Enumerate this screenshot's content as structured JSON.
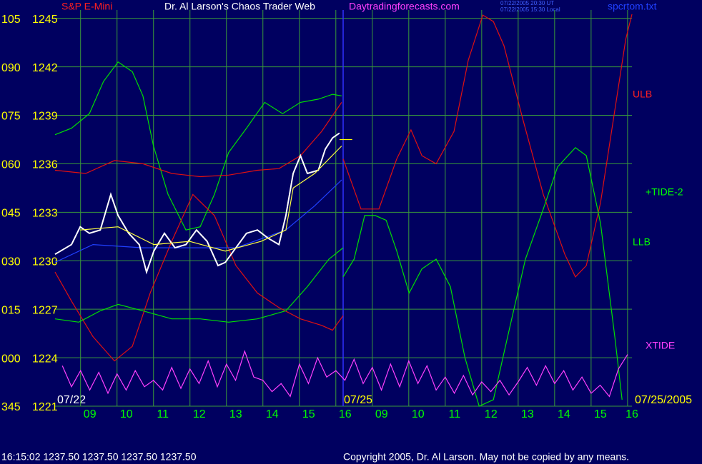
{
  "chart_data": {
    "type": "line",
    "title": "Dr. Al Larson's Chaos Trader Web",
    "instrument": "S&P E-Mini",
    "website": "Daytradingforecasts.com",
    "timestamps": [
      "07/22/2005 20:30 UT",
      "07/22/2005 15:30 Local"
    ],
    "file": "spcrtom.txt",
    "quote": "16:15:02  1237.50 1237.50 1237.50 1237.50",
    "copyright": "Copyright 2005, Dr. Al Larson. May not be copied by any means.",
    "dates": [
      "07/22",
      "07/25",
      "07/25/2005"
    ],
    "background": "#000060",
    "grid": true,
    "grid_color": "#3a9a3a",
    "xlim": [
      8.3,
      24.12
    ],
    "xticks": [
      {
        "value": 9,
        "label": "09"
      },
      10,
      11,
      12,
      13,
      14,
      15,
      16,
      {
        "value": 17,
        "label": "09"
      },
      {
        "value": 18,
        "label": "10"
      },
      {
        "value": 19,
        "label": "11"
      },
      {
        "value": 20,
        "label": "12"
      },
      {
        "value": 21,
        "label": "13"
      },
      {
        "value": 22,
        "label": "14"
      },
      {
        "value": 23,
        "label": "15"
      },
      {
        "value": 24,
        "label": "16"
      }
    ],
    "ylim": [
      1221,
      1245.25
    ],
    "yticks": [
      1245,
      1242,
      1239,
      1236,
      1233,
      1230,
      1227,
      1224,
      1221
    ],
    "y2lim": [
      -15,
      106.25
    ],
    "y2ticks": [
      105,
      {
        "value": 90,
        "label": "090"
      },
      {
        "value": 75,
        "label": "075"
      },
      {
        "value": 60,
        "label": "060"
      },
      {
        "value": 45,
        "label": "045"
      },
      {
        "value": 30,
        "label": "030"
      },
      {
        "value": 15,
        "label": "015"
      },
      {
        "value": 0,
        "label": "000"
      },
      {
        "value": -15,
        "label": "345"
      }
    ],
    "annotations": [
      {
        "text": "ULB",
        "color": "#ff2020"
      },
      {
        "text": "+TIDE-2",
        "color": "#00ff00"
      },
      {
        "text": "LLB",
        "color": "#00ff00"
      },
      {
        "text": "XTIDE",
        "color": "#ff40ff"
      }
    ],
    "series": [
      {
        "color": "#00e000",
        "x": [
          8.3,
          8.75,
          9.24,
          9.63,
          10.03,
          10.42,
          10.71,
          11.0,
          11.4,
          11.89,
          12.28,
          12.67,
          13.06,
          13.55,
          14.05,
          14.54,
          15.03,
          15.52,
          15.91,
          16.16
        ],
        "values": [
          1237.8,
          1238.2,
          1239.1,
          1241.1,
          1242.3,
          1241.7,
          1240.2,
          1237.1,
          1234.1,
          1231.9,
          1232.1,
          1234.1,
          1236.7,
          1238.2,
          1239.8,
          1239.1,
          1239.8,
          1240,
          1240.3,
          1240.2
        ]
      },
      {
        "color": "#e01010",
        "x": [
          8.3,
          9.14,
          9.93,
          10.71,
          11.5,
          12.28,
          13.06,
          13.85,
          14.44,
          15.03,
          15.61,
          16.16
        ],
        "values": [
          1235.6,
          1235.4,
          1236.2,
          1236,
          1235.4,
          1235.2,
          1235.3,
          1235.6,
          1235.7,
          1236.5,
          1238,
          1239.8
        ]
      },
      {
        "color": "#e01010",
        "x": [
          16.2,
          16.69,
          17.18,
          17.67,
          18.06,
          18.36,
          18.75,
          19.24,
          19.63,
          20.03,
          20.32,
          20.61,
          21.11,
          21.69,
          22.28,
          22.57,
          22.87,
          23.26,
          23.65,
          23.95,
          24.12
        ],
        "values": [
          1236.3,
          1233.2,
          1233.2,
          1236.3,
          1238.1,
          1236.5,
          1236,
          1238,
          1242.4,
          1245.2,
          1244.8,
          1243.3,
          1238.9,
          1234.1,
          1230.4,
          1229,
          1229.7,
          1233.6,
          1239.3,
          1243.7,
          1245.25
        ]
      },
      {
        "color": "#e01010",
        "x": [
          8.3,
          8.75,
          9.34,
          9.93,
          10.42,
          10.91,
          11.5,
          12.08,
          12.67,
          13.26,
          13.85,
          14.44,
          15.03,
          15.61,
          15.91,
          16.2
        ],
        "values": [
          1229.3,
          1227.5,
          1225.3,
          1223.8,
          1224.7,
          1228,
          1231.2,
          1234.1,
          1232.8,
          1229.7,
          1228,
          1227.1,
          1226.4,
          1226,
          1225.7,
          1226.6
        ]
      },
      {
        "color": "#00e000",
        "x": [
          8.3,
          8.95,
          9.54,
          10.03,
          10.71,
          11.5,
          12.28,
          13.06,
          13.85,
          14.63,
          15.22,
          15.81,
          16.2
        ],
        "values": [
          1226.4,
          1226.2,
          1226.9,
          1227.3,
          1226.9,
          1226.4,
          1226.4,
          1226.2,
          1226.4,
          1226.9,
          1228.4,
          1230.1,
          1230.8
        ]
      },
      {
        "color": "#00e000",
        "x": [
          16.2,
          16.5,
          16.79,
          17.08,
          17.38,
          17.67,
          18.01,
          18.36,
          18.75,
          19.14,
          19.54,
          19.93,
          20.32,
          20.71,
          21.2,
          21.69,
          22.08,
          22.57,
          22.87,
          23.26,
          23.65,
          23.85
        ],
        "values": [
          1229,
          1230.1,
          1232.8,
          1232.8,
          1232.5,
          1230.6,
          1228,
          1229.5,
          1230.1,
          1228.4,
          1224,
          1221,
          1221.4,
          1225.3,
          1230.1,
          1233.2,
          1235.8,
          1237,
          1236.5,
          1232.3,
          1225.3,
          1221.4
        ]
      },
      {
        "color": "#ff40ff",
        "x": [
          8.5,
          8.75,
          9,
          9.25,
          9.5,
          9.75,
          10,
          10.25,
          10.5,
          10.75,
          11,
          11.25,
          11.5,
          11.75,
          12,
          12.25,
          12.5,
          12.75,
          13,
          13.25,
          13.5,
          13.75,
          14,
          14.25,
          14.5,
          14.75,
          15,
          15.25,
          15.5,
          15.75,
          16,
          16.25,
          16.5,
          16.75,
          17,
          17.25,
          17.5,
          17.75,
          18,
          18.25,
          18.5,
          18.75,
          19,
          19.25,
          19.5,
          19.75,
          20,
          20.25,
          20.5,
          20.75,
          21,
          21.25,
          21.5,
          21.75,
          22,
          22.25,
          22.5,
          22.75,
          23,
          23.25,
          23.5,
          23.75,
          24
        ],
        "values": [
          1223.5,
          1222.2,
          1223.2,
          1222.0,
          1223.1,
          1221.8,
          1223.0,
          1222.0,
          1223.2,
          1222.2,
          1222.6,
          1222.0,
          1223.4,
          1222.1,
          1223.3,
          1222.4,
          1223.8,
          1222.2,
          1223.6,
          1222.6,
          1224.4,
          1222.8,
          1222.6,
          1221.9,
          1222.4,
          1221.6,
          1223.6,
          1222.4,
          1224.0,
          1222.8,
          1223.2,
          1222.6,
          1223.9,
          1222.4,
          1223.4,
          1222.0,
          1223.6,
          1222.2,
          1223.8,
          1222.4,
          1223.5,
          1222.0,
          1222.8,
          1221.8,
          1222.9,
          1221.7,
          1222.5,
          1221.9,
          1222.6,
          1221.7,
          1222.5,
          1223.4,
          1222.3,
          1223.5,
          1222.4,
          1223.2,
          1222.0,
          1222.8,
          1221.8,
          1222.3,
          1221.6,
          1223.3,
          1224.2
        ]
      },
      {
        "color": "#2040ff",
        "x": [
          8.3,
          9.34,
          10.71,
          12.28,
          13.26,
          14.63,
          15.42,
          16.16
        ],
        "values": [
          1229.9,
          1231,
          1230.8,
          1230.8,
          1230.8,
          1231.9,
          1233.4,
          1235
        ]
      },
      {
        "color": "#ffffff",
        "x": [
          8.3,
          8.75,
          8.99,
          9.24,
          9.54,
          9.83,
          10.03,
          10.32,
          10.61,
          10.81,
          11.01,
          11.3,
          11.59,
          11.89,
          12.18,
          12.47,
          12.77,
          12.97,
          13.26,
          13.55,
          13.85,
          14.14,
          14.44,
          14.63,
          14.83,
          15.03,
          15.22,
          15.52,
          15.71,
          15.91,
          16.1
        ],
        "values": [
          1230.4,
          1231,
          1232.1,
          1231.7,
          1231.9,
          1234.1,
          1232.8,
          1231.7,
          1231,
          1229.3,
          1230.6,
          1231.7,
          1230.8,
          1231,
          1231.9,
          1231.2,
          1229.7,
          1229.9,
          1230.8,
          1231.7,
          1231.9,
          1231.4,
          1231,
          1232.8,
          1235.4,
          1236.5,
          1235.4,
          1235.6,
          1236.9,
          1237.6,
          1237.9
        ]
      },
      {
        "color": "#ffff40",
        "x": [
          8.99,
          10.03,
          11.01,
          11.99,
          12.97,
          13.95,
          14.63,
          14.83,
          15.42,
          16.16
        ],
        "values": [
          1231.9,
          1232.1,
          1231,
          1231.2,
          1230.6,
          1231.2,
          1231.9,
          1234.5,
          1235.4,
          1237.1
        ]
      },
      {
        "color": "#ffff00",
        "x": [
          16.1,
          16.45
        ],
        "values": [
          1237.5,
          1237.5
        ]
      }
    ]
  }
}
